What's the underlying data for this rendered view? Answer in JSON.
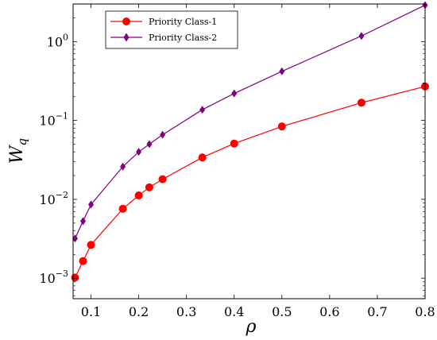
{
  "chart_data": {
    "type": "line",
    "title": "",
    "xlabel": "ρ",
    "ylabel_main": "W",
    "ylabel_sub": "q",
    "y_scale": "log",
    "xlim": [
      0.0625,
      0.8
    ],
    "ylim": [
      0.00055,
      3.0
    ],
    "grid": false,
    "legend_position": "top-left",
    "x_ticks": [
      0.1,
      0.2,
      0.3,
      0.4,
      0.5,
      0.6,
      0.7,
      0.8
    ],
    "x_tick_labels": [
      "0.1",
      "0.2",
      "0.3",
      "0.4",
      "0.5",
      "0.6",
      "0.7",
      "0.8"
    ],
    "y_ticks": [
      0.001,
      0.01,
      0.1,
      1
    ],
    "y_tick_labels": [
      {
        "base": "10",
        "exp": "−3"
      },
      {
        "base": "10",
        "exp": "−2"
      },
      {
        "base": "10",
        "exp": "−1"
      },
      {
        "base": "10",
        "exp": "0"
      }
    ],
    "series": [
      {
        "name": "Priority Class-1",
        "color": "#ff0000",
        "marker": "circle",
        "x": [
          0.0667,
          0.0833,
          0.1,
          0.1667,
          0.2,
          0.2222,
          0.25,
          0.3333,
          0.4,
          0.5,
          0.6667,
          0.8
        ],
        "y": [
          0.00102,
          0.00165,
          0.00265,
          0.0076,
          0.0112,
          0.0142,
          0.018,
          0.034,
          0.051,
          0.084,
          0.168,
          0.27
        ]
      },
      {
        "name": "Priority Class-2",
        "color": "#800080",
        "marker": "diamond",
        "x": [
          0.0667,
          0.0833,
          0.1,
          0.1667,
          0.2,
          0.2222,
          0.25,
          0.3333,
          0.4,
          0.5,
          0.6667,
          0.8
        ],
        "y": [
          0.0032,
          0.0053,
          0.0086,
          0.026,
          0.04,
          0.05,
          0.066,
          0.137,
          0.22,
          0.42,
          1.18,
          2.9
        ]
      }
    ]
  }
}
